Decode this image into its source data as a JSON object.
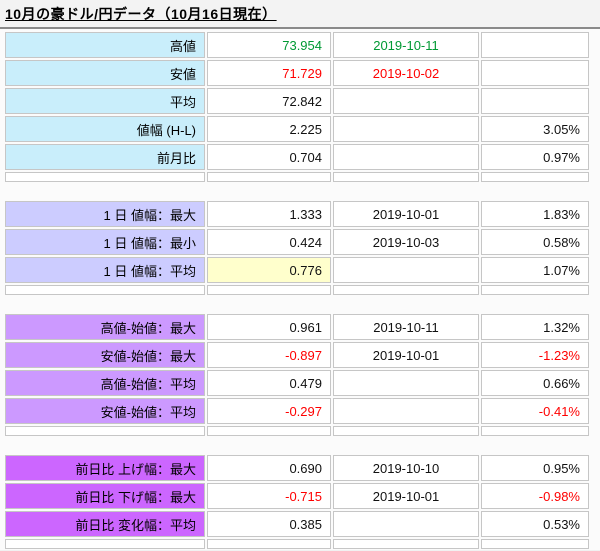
{
  "title": "10月の豪ドル/円データ（10月16日現在）",
  "colors": {
    "green": "#009933",
    "red": "#ff0000",
    "highlight_yellow": "#ffffcc",
    "sections": {
      "a": "#c9eefb",
      "b": "#ccccff",
      "c": "#cc99ff",
      "d": "#cc66ff"
    }
  },
  "chart_data": {
    "type": "table",
    "title": "10月の豪ドル/円データ（10月16日現在）",
    "rows": [
      {
        "type": "data",
        "section": "a",
        "label": "高値",
        "value": "73.954",
        "value_color": "green",
        "date": "2019-10-11",
        "date_color": "green",
        "pct": ""
      },
      {
        "type": "data",
        "section": "a",
        "label": "安値",
        "value": "71.729",
        "value_color": "red",
        "date": "2019-10-02",
        "date_color": "red",
        "pct": ""
      },
      {
        "type": "data",
        "section": "a",
        "label": "平均",
        "value": "72.842",
        "date": "",
        "pct": ""
      },
      {
        "type": "data",
        "section": "a",
        "label": "値幅 (H-L)",
        "value": "2.225",
        "date": "",
        "pct": "3.05%"
      },
      {
        "type": "data",
        "section": "a",
        "label": "前月比",
        "value": "0.704",
        "date": "",
        "pct": "0.97%"
      },
      {
        "type": "spacer"
      },
      {
        "type": "gap"
      },
      {
        "type": "data",
        "section": "b",
        "label": "1 日 値幅：最大",
        "value": "1.333",
        "date": "2019-10-01",
        "pct": "1.83%"
      },
      {
        "type": "data",
        "section": "b",
        "label": "1 日 値幅：最小",
        "value": "0.424",
        "date": "2019-10-03",
        "pct": "0.58%"
      },
      {
        "type": "data",
        "section": "b",
        "label": "1 日 値幅：平均",
        "value": "0.776",
        "value_bg": "highlight_yellow",
        "date": "",
        "pct": "1.07%"
      },
      {
        "type": "spacer"
      },
      {
        "type": "gap"
      },
      {
        "type": "data",
        "section": "c",
        "label": "高値-始値：最大",
        "value": "0.961",
        "date": "2019-10-11",
        "pct": "1.32%"
      },
      {
        "type": "data",
        "section": "c",
        "label": "安値-始値：最大",
        "value": "-0.897",
        "value_color": "red",
        "date": "2019-10-01",
        "pct": "-1.23%",
        "pct_color": "red"
      },
      {
        "type": "data",
        "section": "c",
        "label": "高値-始値：平均",
        "value": "0.479",
        "date": "",
        "pct": "0.66%"
      },
      {
        "type": "data",
        "section": "c",
        "label": "安値-始値：平均",
        "value": "-0.297",
        "value_color": "red",
        "date": "",
        "pct": "-0.41%",
        "pct_color": "red"
      },
      {
        "type": "spacer"
      },
      {
        "type": "gap"
      },
      {
        "type": "data",
        "section": "d",
        "label": "前日比 上げ幅：最大",
        "value": "0.690",
        "date": "2019-10-10",
        "pct": "0.95%"
      },
      {
        "type": "data",
        "section": "d",
        "label": "前日比 下げ幅：最大",
        "value": "-0.715",
        "value_color": "red",
        "date": "2019-10-01",
        "pct": "-0.98%",
        "pct_color": "red"
      },
      {
        "type": "data",
        "section": "d",
        "label": "前日比 変化幅：平均",
        "value": "0.385",
        "date": "",
        "pct": "0.53%"
      },
      {
        "type": "spacer"
      }
    ]
  }
}
